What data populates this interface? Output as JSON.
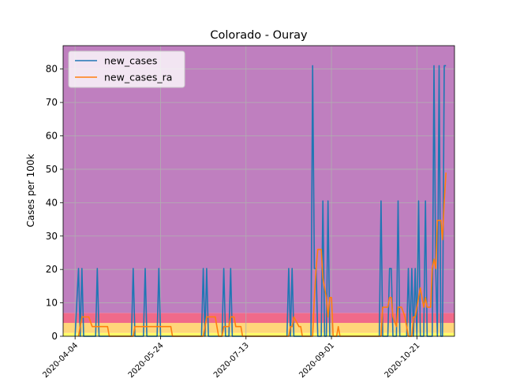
{
  "chart_data": {
    "type": "line",
    "title": "Colorado - Ouray",
    "xlabel": "",
    "ylabel": "Cases per 100k",
    "ylim": [
      0,
      87
    ],
    "xlim": [
      "2020-03-28",
      "2020-11-12"
    ],
    "yticks": [
      0,
      10,
      20,
      30,
      40,
      50,
      60,
      70,
      80
    ],
    "xticks": [
      "2020-04-04",
      "2020-05-24",
      "2020-07-13",
      "2020-09-01",
      "2020-10-21"
    ],
    "grid": true,
    "legend_position": "top-left",
    "background_bands": [
      {
        "from": 0,
        "to": 1,
        "color": "#ffff66"
      },
      {
        "from": 1,
        "to": 4,
        "color": "#ffd67a"
      },
      {
        "from": 4,
        "to": 7,
        "color": "#f06a8a"
      },
      {
        "from": 7,
        "to": 87,
        "color": "#bf7fbf"
      }
    ],
    "series": [
      {
        "name": "new_cases",
        "color": "#1f77b4",
        "points": [
          [
            "2020-04-04",
            0
          ],
          [
            "2020-04-06",
            20.3
          ],
          [
            "2020-04-07",
            0
          ],
          [
            "2020-04-08",
            20.3
          ],
          [
            "2020-04-09",
            0
          ],
          [
            "2020-04-16",
            0
          ],
          [
            "2020-04-17",
            20.3
          ],
          [
            "2020-04-18",
            0
          ],
          [
            "2020-05-07",
            0
          ],
          [
            "2020-05-08",
            20.3
          ],
          [
            "2020-05-09",
            0
          ],
          [
            "2020-05-14",
            0
          ],
          [
            "2020-05-15",
            20.3
          ],
          [
            "2020-05-16",
            0
          ],
          [
            "2020-05-22",
            0
          ],
          [
            "2020-05-23",
            20.3
          ],
          [
            "2020-05-24",
            0
          ],
          [
            "2020-06-17",
            0
          ],
          [
            "2020-06-18",
            20.3
          ],
          [
            "2020-06-19",
            0
          ],
          [
            "2020-06-20",
            20.3
          ],
          [
            "2020-06-21",
            0
          ],
          [
            "2020-06-29",
            0
          ],
          [
            "2020-06-30",
            20.3
          ],
          [
            "2020-07-01",
            0
          ],
          [
            "2020-07-03",
            0
          ],
          [
            "2020-07-04",
            20.3
          ],
          [
            "2020-07-05",
            0
          ],
          [
            "2020-08-06",
            0
          ],
          [
            "2020-08-07",
            20.3
          ],
          [
            "2020-08-08",
            0
          ],
          [
            "2020-08-09",
            20.3
          ],
          [
            "2020-08-10",
            0
          ],
          [
            "2020-08-20",
            0
          ],
          [
            "2020-08-21",
            81
          ],
          [
            "2020-08-22",
            20.3
          ],
          [
            "2020-08-23",
            20.3
          ],
          [
            "2020-08-24",
            0
          ],
          [
            "2020-08-26",
            0
          ],
          [
            "2020-08-27",
            40.5
          ],
          [
            "2020-08-28",
            0
          ],
          [
            "2020-08-29",
            0
          ],
          [
            "2020-08-30",
            40.5
          ],
          [
            "2020-08-31",
            0
          ],
          [
            "2020-09-29",
            0
          ],
          [
            "2020-09-30",
            40.5
          ],
          [
            "2020-10-01",
            0
          ],
          [
            "2020-10-04",
            0
          ],
          [
            "2020-10-05",
            20.3
          ],
          [
            "2020-10-06",
            20.3
          ],
          [
            "2020-10-07",
            0
          ],
          [
            "2020-10-09",
            0
          ],
          [
            "2020-10-10",
            40.5
          ],
          [
            "2020-10-11",
            0
          ],
          [
            "2020-10-15",
            0
          ],
          [
            "2020-10-16",
            20.3
          ],
          [
            "2020-10-17",
            0
          ],
          [
            "2020-10-18",
            20.3
          ],
          [
            "2020-10-19",
            0
          ],
          [
            "2020-10-20",
            20.3
          ],
          [
            "2020-10-21",
            0
          ],
          [
            "2020-10-22",
            40.5
          ],
          [
            "2020-10-23",
            0
          ],
          [
            "2020-10-25",
            0
          ],
          [
            "2020-10-26",
            40.5
          ],
          [
            "2020-10-27",
            0
          ],
          [
            "2020-10-30",
            0
          ],
          [
            "2020-10-31",
            81
          ],
          [
            "2020-11-01",
            20.3
          ],
          [
            "2020-11-02",
            0
          ],
          [
            "2020-11-03",
            81
          ],
          [
            "2020-11-04",
            0
          ],
          [
            "2020-11-05",
            0
          ],
          [
            "2020-11-06",
            81
          ],
          [
            "2020-11-07",
            81
          ]
        ]
      },
      {
        "name": "new_cases_ra",
        "color": "#ff7f0e",
        "points": [
          [
            "2020-04-06",
            0
          ],
          [
            "2020-04-07",
            2.9
          ],
          [
            "2020-04-08",
            5.8
          ],
          [
            "2020-04-10",
            5.8
          ],
          [
            "2020-04-12",
            5.8
          ],
          [
            "2020-04-14",
            2.9
          ],
          [
            "2020-04-17",
            2.9
          ],
          [
            "2020-04-20",
            2.9
          ],
          [
            "2020-04-23",
            2.9
          ],
          [
            "2020-04-24",
            0
          ],
          [
            "2020-05-08",
            0
          ],
          [
            "2020-05-09",
            2.9
          ],
          [
            "2020-05-14",
            2.9
          ],
          [
            "2020-05-15",
            2.9
          ],
          [
            "2020-05-22",
            2.9
          ],
          [
            "2020-05-23",
            2.9
          ],
          [
            "2020-05-30",
            2.9
          ],
          [
            "2020-05-31",
            0
          ],
          [
            "2020-06-18",
            0
          ],
          [
            "2020-06-19",
            2.9
          ],
          [
            "2020-06-20",
            5.8
          ],
          [
            "2020-06-25",
            5.8
          ],
          [
            "2020-06-26",
            2.9
          ],
          [
            "2020-06-27",
            0
          ],
          [
            "2020-06-29",
            0
          ],
          [
            "2020-06-30",
            2.9
          ],
          [
            "2020-07-03",
            2.9
          ],
          [
            "2020-07-04",
            5.8
          ],
          [
            "2020-07-06",
            5.8
          ],
          [
            "2020-07-07",
            2.9
          ],
          [
            "2020-07-10",
            2.9
          ],
          [
            "2020-07-11",
            0
          ],
          [
            "2020-08-07",
            0
          ],
          [
            "2020-08-08",
            2.9
          ],
          [
            "2020-08-09",
            2.9
          ],
          [
            "2020-08-10",
            5.8
          ],
          [
            "2020-08-13",
            2.9
          ],
          [
            "2020-08-14",
            2.9
          ],
          [
            "2020-08-15",
            0
          ],
          [
            "2020-08-21",
            0
          ],
          [
            "2020-08-22",
            11.6
          ],
          [
            "2020-08-23",
            20.3
          ],
          [
            "2020-08-24",
            26
          ],
          [
            "2020-08-26",
            26
          ],
          [
            "2020-08-27",
            17.4
          ],
          [
            "2020-08-28",
            14.5
          ],
          [
            "2020-08-29",
            11.6
          ],
          [
            "2020-08-30",
            5.8
          ],
          [
            "2020-08-31",
            11.6
          ],
          [
            "2020-09-01",
            11.6
          ],
          [
            "2020-09-02",
            0
          ],
          [
            "2020-09-04",
            0
          ],
          [
            "2020-09-05",
            2.9
          ],
          [
            "2020-09-06",
            0
          ],
          [
            "2020-09-30",
            0
          ],
          [
            "2020-10-01",
            8.7
          ],
          [
            "2020-10-03",
            8.7
          ],
          [
            "2020-10-04",
            8.7
          ],
          [
            "2020-10-05",
            11.6
          ],
          [
            "2020-10-06",
            11.6
          ],
          [
            "2020-10-07",
            5.8
          ],
          [
            "2020-10-09",
            2.9
          ],
          [
            "2020-10-10",
            8.7
          ],
          [
            "2020-10-12",
            8.7
          ],
          [
            "2020-10-14",
            5.8
          ],
          [
            "2020-10-15",
            2.9
          ],
          [
            "2020-10-16",
            0
          ],
          [
            "2020-10-18",
            0
          ],
          [
            "2020-10-19",
            5.8
          ],
          [
            "2020-10-20",
            5.8
          ],
          [
            "2020-10-21",
            8.7
          ],
          [
            "2020-10-22",
            11.6
          ],
          [
            "2020-10-23",
            14.5
          ],
          [
            "2020-10-24",
            11.6
          ],
          [
            "2020-10-25",
            8.7
          ],
          [
            "2020-10-26",
            11.6
          ],
          [
            "2020-10-27",
            8.7
          ],
          [
            "2020-10-28",
            8.7
          ],
          [
            "2020-10-29",
            8.7
          ],
          [
            "2020-10-30",
            20.3
          ],
          [
            "2020-10-31",
            23.1
          ],
          [
            "2020-11-01",
            20.3
          ],
          [
            "2020-11-02",
            34.7
          ],
          [
            "2020-11-03",
            34.7
          ],
          [
            "2020-11-04",
            34.7
          ],
          [
            "2020-11-05",
            28.9
          ],
          [
            "2020-11-06",
            40.5
          ],
          [
            "2020-11-07",
            49
          ]
        ]
      }
    ]
  }
}
